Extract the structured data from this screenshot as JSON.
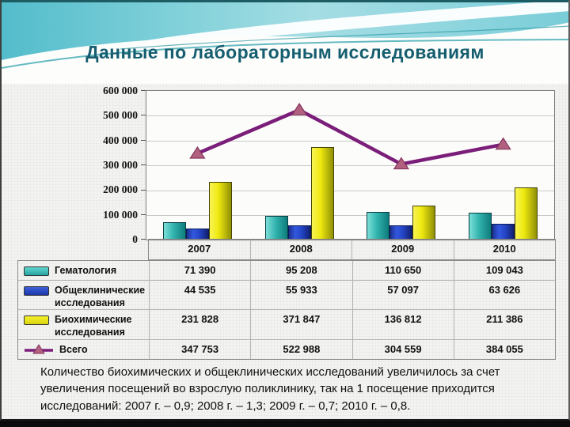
{
  "title": "Данные по лабораторным исследованиям",
  "chart_data": {
    "type": "bar",
    "subtype": "grouped bars with overlay line",
    "categories": [
      "2007",
      "2008",
      "2009",
      "2010"
    ],
    "series": [
      {
        "name": "Гематология",
        "chart_type": "bar",
        "color": "#2fb2ad",
        "values": [
          71390,
          95208,
          110650,
          109043
        ]
      },
      {
        "name": "Общеклинические исследования",
        "chart_type": "bar",
        "color": "#2346cf",
        "values": [
          44535,
          55933,
          57097,
          63626
        ]
      },
      {
        "name": "Биохимические исследования",
        "chart_type": "bar",
        "color": "#efe90f",
        "values": [
          231828,
          371847,
          136812,
          211386
        ]
      },
      {
        "name": "Всего",
        "chart_type": "line",
        "color": "#7b1e7a",
        "marker": "triangle",
        "marker_color": "#b2607f",
        "values": [
          347753,
          522988,
          304559,
          384055
        ]
      }
    ],
    "ylim": [
      0,
      600000
    ],
    "ytick_interval": 100000,
    "ytick_labels": [
      "600 000",
      "500 000",
      "400 000",
      "300 000",
      "200 000",
      "100 000",
      "0"
    ],
    "grid": true,
    "legend_position": "data-table-left-column"
  },
  "table": {
    "years": [
      "2007",
      "2008",
      "2009",
      "2010"
    ],
    "rows": [
      {
        "label": "Гематология",
        "values": [
          "71 390",
          "95 208",
          "110 650",
          "109 043"
        ]
      },
      {
        "label": "Общеклинические исследования",
        "values": [
          "44 535",
          "55 933",
          "57 097",
          "63 626"
        ]
      },
      {
        "label": "Биохимические исследования",
        "values": [
          "231 828",
          "371 847",
          "136 812",
          "211 386"
        ]
      },
      {
        "label": "Всего",
        "values": [
          "347 753",
          "522 988",
          "304 559",
          "384 055"
        ]
      }
    ]
  },
  "summary": "Количество биохимических и общеклинических исследований увеличилось за счет увеличения посещений во взрослую поликлинику, так на 1 посещение приходится исследований: 2007 г. – 0,9; 2008 г. – 1,3; 2009 г. – 0,7; 2010 г. – 0,8."
}
